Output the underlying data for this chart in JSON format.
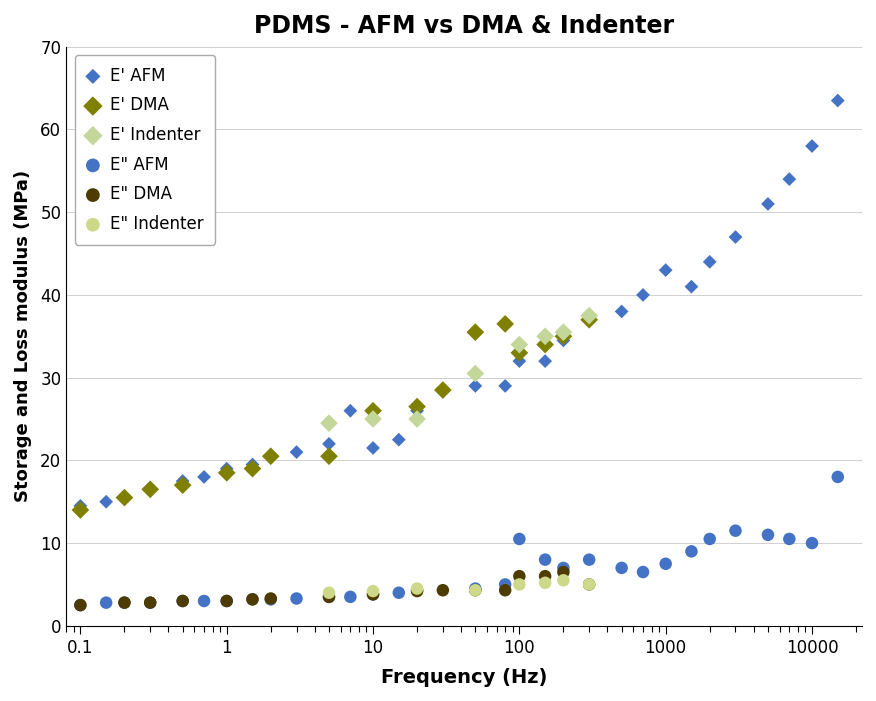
{
  "title": "PDMS - AFM vs DMA & Indenter",
  "xlabel": "Frequency (Hz)",
  "ylabel": "Storage and Loss modulus (MPa)",
  "xlim": [
    0.08,
    22000
  ],
  "ylim": [
    0,
    70
  ],
  "yticks": [
    0,
    10,
    20,
    30,
    40,
    50,
    60,
    70
  ],
  "xtick_labels": [
    "0.1",
    "1",
    "10",
    "100",
    "1000",
    "10000"
  ],
  "xtick_values": [
    0.1,
    1,
    10,
    100,
    1000,
    10000
  ],
  "plot_bg": "#f0f0f0",
  "fig_bg": "#ffffff",
  "series": {
    "E_prime_AFM": {
      "label": "E’ AFM",
      "color": "#4472C4",
      "marker": "D",
      "marker_size": 7,
      "x": [
        0.1,
        0.15,
        0.2,
        0.3,
        0.5,
        0.7,
        1.0,
        1.5,
        2.0,
        3.0,
        5.0,
        7.0,
        10,
        15,
        20,
        50,
        80,
        100,
        150,
        200,
        300,
        500,
        700,
        1000,
        1500,
        2000,
        3000,
        5000,
        7000,
        10000,
        15000
      ],
      "y": [
        14.5,
        15.0,
        15.5,
        16.5,
        17.5,
        18.0,
        19.0,
        19.5,
        20.5,
        21.0,
        22.0,
        26.0,
        21.5,
        22.5,
        26.0,
        29.0,
        29.0,
        32.0,
        32.0,
        34.5,
        37.0,
        38.0,
        40.0,
        43.0,
        41.0,
        44.0,
        47.0,
        51.0,
        54.0,
        58.0,
        63.5
      ]
    },
    "E_prime_DMA": {
      "label": "E’ DMA",
      "color": "#7F7F00",
      "marker": "D",
      "marker_size": 9,
      "x": [
        0.1,
        0.2,
        0.3,
        0.5,
        1.0,
        1.5,
        2.0,
        5.0,
        10,
        20,
        30,
        50,
        80,
        100,
        150,
        200,
        300
      ],
      "y": [
        14.0,
        15.5,
        16.5,
        17.0,
        18.5,
        19.0,
        20.5,
        20.5,
        26.0,
        26.5,
        28.5,
        35.5,
        36.5,
        33.0,
        34.0,
        35.0,
        37.0
      ]
    },
    "E_prime_Indenter": {
      "label": "E’ Indenter",
      "color": "#C4D79B",
      "marker": "D",
      "marker_size": 9,
      "x": [
        5.0,
        10,
        20,
        50,
        100,
        150,
        200,
        300
      ],
      "y": [
        24.5,
        25.0,
        25.0,
        30.5,
        34.0,
        35.0,
        35.5,
        37.5
      ]
    },
    "E_double_prime_AFM": {
      "label": "E’’ AFM",
      "color": "#4472C4",
      "marker": "o",
      "marker_size": 9,
      "x": [
        0.1,
        0.15,
        0.2,
        0.3,
        0.5,
        0.7,
        1.0,
        1.5,
        2.0,
        3.0,
        5.0,
        7.0,
        10,
        15,
        20,
        50,
        80,
        100,
        150,
        200,
        300,
        500,
        700,
        1000,
        1500,
        2000,
        3000,
        5000,
        7000,
        10000,
        15000
      ],
      "y": [
        2.5,
        2.8,
        2.8,
        2.8,
        3.0,
        3.0,
        3.0,
        3.2,
        3.2,
        3.3,
        3.5,
        3.5,
        3.8,
        4.0,
        4.3,
        4.5,
        5.0,
        10.5,
        8.0,
        7.0,
        8.0,
        7.0,
        6.5,
        7.5,
        9.0,
        10.5,
        11.5,
        11.0,
        10.5,
        10.0,
        18.0
      ]
    },
    "E_double_prime_DMA": {
      "label": "E’’ DMA",
      "color": "#4D3B00",
      "marker": "o",
      "marker_size": 9,
      "x": [
        0.1,
        0.2,
        0.3,
        0.5,
        1.0,
        1.5,
        2.0,
        5.0,
        10,
        20,
        30,
        50,
        80,
        100,
        150,
        200,
        300
      ],
      "y": [
        2.5,
        2.8,
        2.8,
        3.0,
        3.0,
        3.2,
        3.3,
        3.5,
        3.8,
        4.2,
        4.3,
        4.3,
        4.3,
        6.0,
        6.0,
        6.5,
        5.0
      ]
    },
    "E_double_prime_Indenter": {
      "label": "E’’ Indenter",
      "color": "#CDD988",
      "marker": "o",
      "marker_size": 9,
      "x": [
        5.0,
        10,
        20,
        50,
        100,
        150,
        200,
        300
      ],
      "y": [
        4.0,
        4.2,
        4.5,
        4.3,
        5.0,
        5.2,
        5.5,
        5.0
      ]
    }
  }
}
